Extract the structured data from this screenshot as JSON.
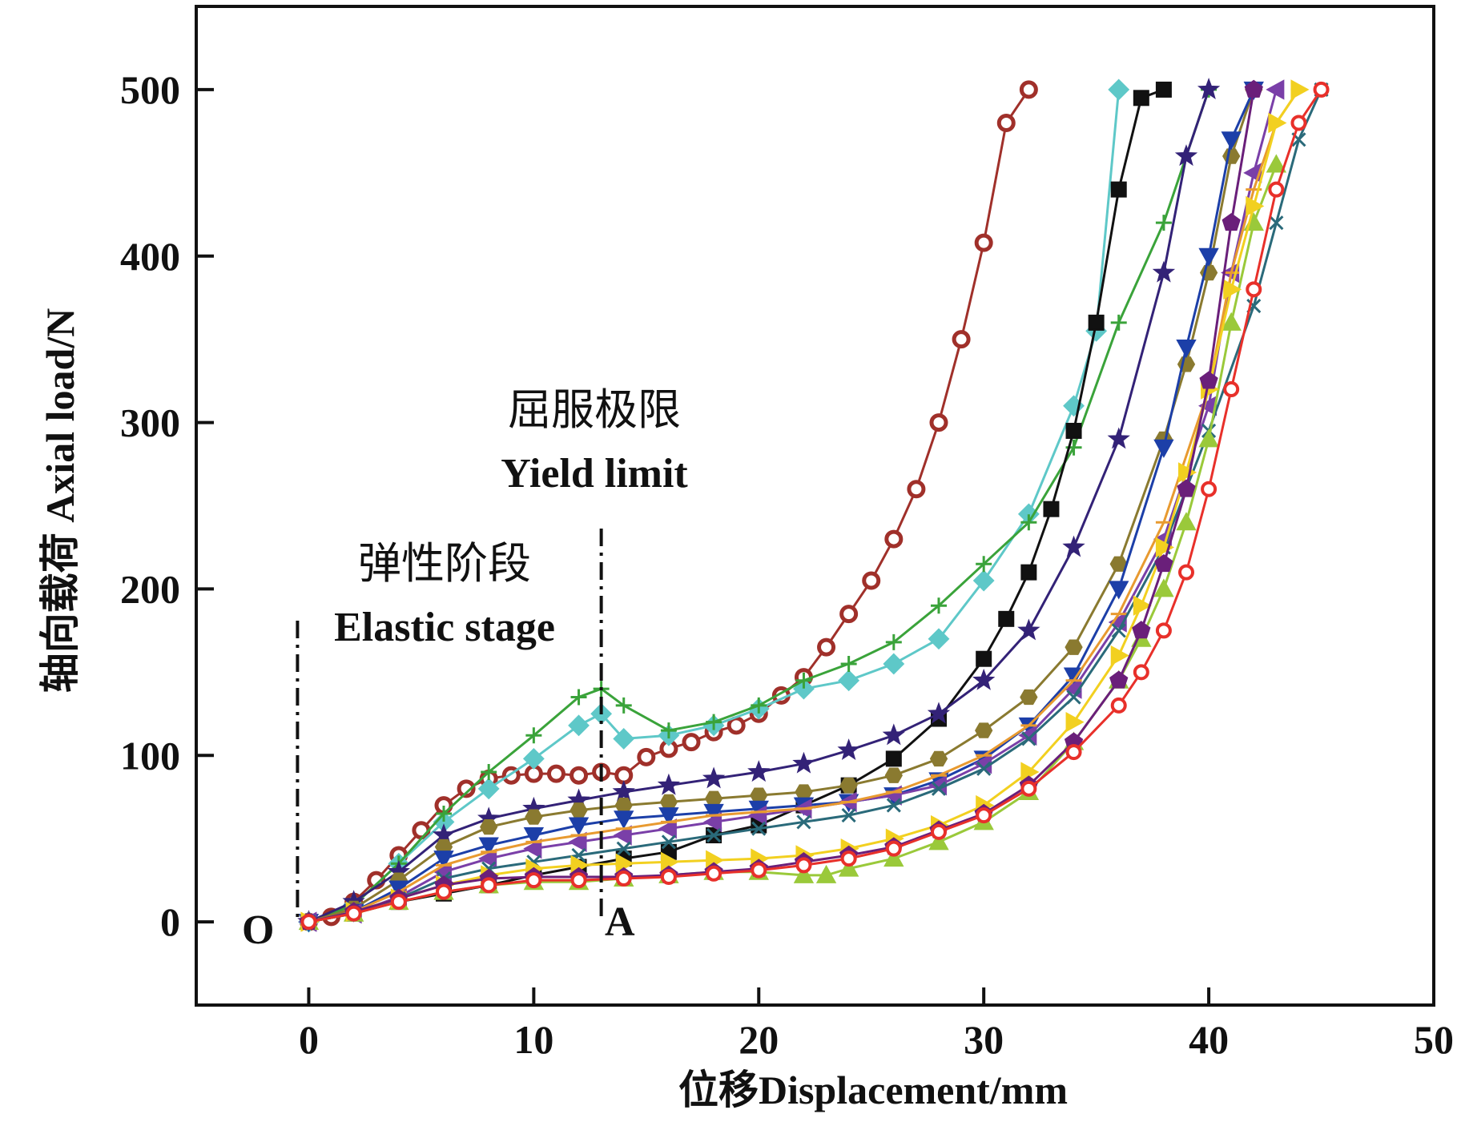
{
  "chart_data": {
    "type": "line",
    "xlabel": "位移Displacement/mm",
    "ylabel": "轴向载荷 Axial load/N",
    "xlim": [
      -5,
      50
    ],
    "ylim": [
      -50,
      550
    ],
    "xticks": [
      0,
      10,
      20,
      30,
      40,
      50
    ],
    "yticks": [
      0,
      100,
      200,
      300,
      400,
      500
    ],
    "grid": false,
    "legend": "none",
    "annotations": {
      "origin_label": "O",
      "yield_point_label": "A",
      "elastic_stage_cn": "弹性阶段",
      "elastic_stage_en": "Elastic stage",
      "yield_limit_cn": "屈服极限",
      "yield_limit_en": "Yield limit",
      "elastic_line_x": -0.5,
      "yield_line_x": 13
    },
    "series": [
      {
        "color": "#a0302a",
        "marker": "circle",
        "x": [
          0,
          1,
          2,
          3,
          4,
          5,
          6,
          7,
          8,
          9,
          10,
          11,
          12,
          13,
          14,
          15,
          16,
          17,
          18,
          19,
          20,
          21,
          22,
          23,
          24,
          25,
          26,
          27,
          28,
          29,
          30,
          31,
          32
        ],
        "y": [
          0,
          3,
          12,
          25,
          40,
          55,
          70,
          80,
          86,
          88,
          89,
          89,
          88,
          90,
          88,
          99,
          104,
          108,
          114,
          118,
          125,
          136,
          147,
          165,
          185,
          205,
          230,
          260,
          300,
          350,
          408,
          480,
          500
        ]
      },
      {
        "color": "#5ec8c8",
        "marker": "diamond",
        "x": [
          0,
          2,
          4,
          6,
          8,
          10,
          12,
          13,
          14,
          16,
          18,
          20,
          22,
          24,
          26,
          28,
          30,
          32,
          34,
          35,
          36
        ],
        "y": [
          0,
          10,
          35,
          60,
          80,
          98,
          118,
          125,
          110,
          112,
          118,
          128,
          140,
          145,
          155,
          170,
          205,
          245,
          310,
          355,
          500
        ]
      },
      {
        "color": "#3aa33a",
        "marker": "plus",
        "x": [
          0,
          2,
          4,
          6,
          8,
          10,
          12,
          13,
          14,
          16,
          18,
          20,
          22,
          24,
          26,
          28,
          30,
          32,
          34,
          36,
          38,
          40
        ],
        "y": [
          0,
          10,
          35,
          65,
          90,
          112,
          135,
          140,
          130,
          115,
          120,
          130,
          145,
          155,
          168,
          190,
          215,
          240,
          285,
          360,
          420,
          500
        ]
      },
      {
        "color": "#111111",
        "marker": "square",
        "x": [
          0,
          2,
          4,
          6,
          8,
          10,
          12,
          14,
          16,
          18,
          20,
          22,
          24,
          26,
          28,
          30,
          31,
          32,
          33,
          34,
          35,
          36,
          37,
          38
        ],
        "y": [
          0,
          5,
          12,
          17,
          22,
          28,
          33,
          38,
          42,
          52,
          58,
          70,
          82,
          98,
          122,
          158,
          182,
          210,
          248,
          295,
          360,
          440,
          495,
          500
        ]
      },
      {
        "color": "#332277",
        "marker": "star",
        "x": [
          0,
          2,
          4,
          6,
          8,
          10,
          12,
          14,
          16,
          18,
          20,
          22,
          24,
          26,
          28,
          30,
          32,
          34,
          36,
          38,
          39,
          40
        ],
        "y": [
          0,
          12,
          30,
          52,
          62,
          68,
          73,
          78,
          82,
          86,
          90,
          95,
          103,
          112,
          125,
          145,
          175,
          225,
          290,
          390,
          460,
          500
        ]
      },
      {
        "color": "#8a7a30",
        "marker": "hexagon",
        "x": [
          0,
          2,
          4,
          6,
          8,
          10,
          12,
          14,
          16,
          18,
          20,
          22,
          24,
          26,
          28,
          30,
          32,
          34,
          36,
          38,
          39,
          40,
          41,
          42
        ],
        "y": [
          0,
          8,
          25,
          45,
          57,
          63,
          67,
          70,
          72,
          74,
          76,
          78,
          82,
          88,
          98,
          115,
          135,
          165,
          215,
          290,
          335,
          390,
          460,
          500
        ]
      },
      {
        "color": "#1c3fa8",
        "marker": "triangle-down",
        "x": [
          0,
          2,
          4,
          6,
          8,
          10,
          12,
          14,
          16,
          18,
          20,
          22,
          24,
          26,
          28,
          30,
          32,
          34,
          36,
          38,
          39,
          40,
          41,
          42
        ],
        "y": [
          0,
          6,
          20,
          38,
          46,
          52,
          58,
          62,
          64,
          66,
          68,
          70,
          72,
          76,
          85,
          98,
          118,
          148,
          200,
          285,
          345,
          400,
          470,
          500
        ]
      },
      {
        "color": "#7a3fa8",
        "marker": "triangle-left",
        "x": [
          0,
          2,
          4,
          6,
          8,
          10,
          12,
          14,
          16,
          18,
          20,
          22,
          24,
          26,
          28,
          30,
          32,
          34,
          36,
          38,
          40,
          41,
          42,
          43
        ],
        "y": [
          0,
          5,
          15,
          30,
          38,
          44,
          48,
          52,
          56,
          60,
          64,
          68,
          72,
          76,
          82,
          95,
          112,
          140,
          180,
          230,
          310,
          390,
          450,
          500
        ]
      },
      {
        "color": "#e89a30",
        "marker": "dash",
        "x": [
          0,
          2,
          4,
          6,
          8,
          10,
          12,
          14,
          16,
          18,
          20,
          22,
          24,
          26,
          28,
          30,
          32,
          34,
          36,
          38,
          40,
          41,
          42,
          43,
          44
        ],
        "y": [
          0,
          6,
          18,
          34,
          42,
          48,
          52,
          56,
          60,
          64,
          66,
          68,
          72,
          78,
          88,
          100,
          118,
          145,
          185,
          240,
          320,
          390,
          440,
          480,
          500
        ]
      },
      {
        "color": "#2a6a7a",
        "marker": "x",
        "x": [
          0,
          2,
          4,
          6,
          8,
          10,
          12,
          14,
          16,
          18,
          20,
          22,
          24,
          26,
          28,
          30,
          32,
          34,
          36,
          38,
          40,
          42,
          43,
          44,
          45
        ],
        "y": [
          0,
          5,
          14,
          26,
          32,
          36,
          40,
          44,
          48,
          52,
          56,
          60,
          64,
          70,
          80,
          92,
          110,
          135,
          175,
          225,
          295,
          370,
          420,
          470,
          500
        ]
      },
      {
        "color": "#9ac93a",
        "marker": "triangle-up",
        "x": [
          0,
          2,
          4,
          6,
          8,
          10,
          12,
          14,
          16,
          18,
          20,
          22,
          23,
          24,
          26,
          28,
          30,
          32,
          34,
          36,
          37,
          38,
          39,
          40,
          41,
          42,
          43
        ],
        "y": [
          0,
          5,
          12,
          18,
          22,
          24,
          24,
          26,
          28,
          30,
          30,
          28,
          28,
          32,
          38,
          48,
          60,
          78,
          108,
          145,
          170,
          200,
          240,
          290,
          360,
          420,
          455
        ]
      },
      {
        "color": "#f2d020",
        "marker": "triangle-right",
        "x": [
          0,
          2,
          4,
          6,
          8,
          10,
          12,
          14,
          16,
          18,
          20,
          22,
          24,
          26,
          28,
          30,
          32,
          34,
          36,
          37,
          38,
          39,
          40,
          41,
          42,
          43,
          44
        ],
        "y": [
          0,
          6,
          14,
          22,
          28,
          32,
          34,
          35,
          36,
          37,
          38,
          40,
          44,
          50,
          58,
          70,
          90,
          120,
          160,
          190,
          225,
          270,
          320,
          380,
          430,
          480,
          500
        ]
      },
      {
        "color": "#6a1f7a",
        "marker": "pentagon",
        "x": [
          0,
          2,
          4,
          6,
          8,
          10,
          12,
          14,
          16,
          18,
          20,
          22,
          24,
          26,
          28,
          30,
          32,
          34,
          36,
          37,
          38,
          39,
          40,
          41,
          42
        ],
        "y": [
          0,
          6,
          14,
          22,
          26,
          27,
          27,
          27,
          28,
          30,
          32,
          36,
          40,
          45,
          55,
          65,
          82,
          108,
          145,
          175,
          215,
          260,
          325,
          420,
          500
        ]
      },
      {
        "color": "#e8302a",
        "marker": "circle-half",
        "x": [
          0,
          2,
          4,
          6,
          8,
          10,
          12,
          14,
          16,
          18,
          20,
          22,
          24,
          26,
          28,
          30,
          32,
          34,
          36,
          37,
          38,
          39,
          40,
          41,
          42,
          43,
          44,
          45
        ],
        "y": [
          0,
          5,
          12,
          18,
          22,
          25,
          25,
          26,
          27,
          29,
          31,
          34,
          38,
          44,
          54,
          64,
          80,
          102,
          130,
          150,
          175,
          210,
          260,
          320,
          380,
          440,
          480,
          500
        ]
      }
    ]
  }
}
